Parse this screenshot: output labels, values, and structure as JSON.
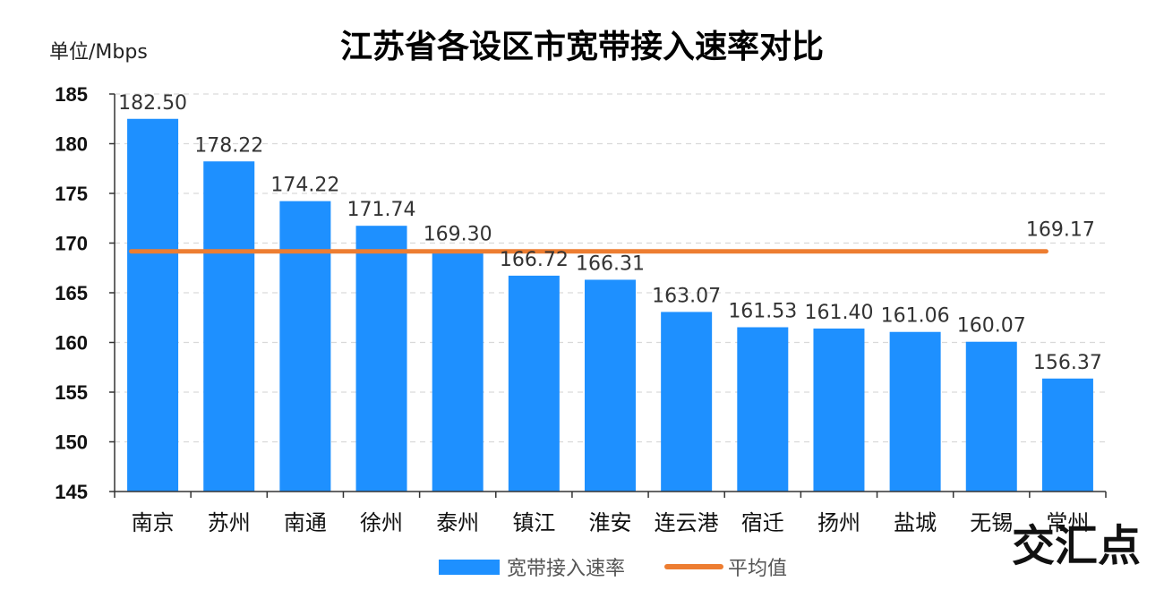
{
  "chart_data": {
    "type": "bar",
    "title": "江苏省各设区市宽带接入速率对比",
    "ylabel": "单位/Mbps",
    "ylim": [
      145,
      185
    ],
    "yticks": [
      145,
      150,
      155,
      160,
      165,
      170,
      175,
      180,
      185
    ],
    "categories": [
      "南京",
      "苏州",
      "南通",
      "徐州",
      "泰州",
      "镇江",
      "淮安",
      "连云港",
      "宿迁",
      "扬州",
      "盐城",
      "无锡",
      "常州"
    ],
    "series": [
      {
        "name": "宽带接入速率",
        "type": "bar",
        "color": "#1e90ff",
        "values": [
          182.5,
          178.22,
          174.22,
          171.74,
          169.3,
          166.72,
          166.31,
          163.07,
          161.53,
          161.4,
          161.06,
          160.07,
          156.37
        ],
        "labels": [
          "182.50",
          "178.22",
          "174.22",
          "171.74",
          "169.30",
          "166.72",
          "166.31",
          "163.07",
          "161.53",
          "161.40",
          "161.06",
          "160.07",
          "156.37"
        ]
      },
      {
        "name": "平均值",
        "type": "line",
        "color": "#ed7d31",
        "value": 169.17,
        "label": "169.17"
      }
    ],
    "grid": true,
    "legend": "bottom-center"
  },
  "watermark": "交汇点"
}
